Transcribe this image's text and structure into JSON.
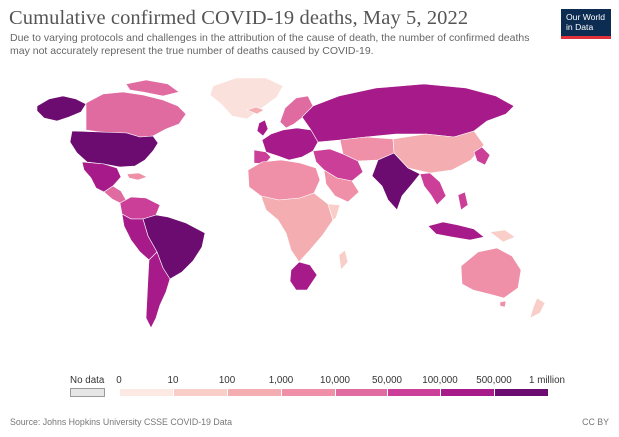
{
  "title": "Cumulative confirmed COVID-19 deaths, May 5, 2022",
  "subtitle": "Due to varying protocols and challenges in the attribution of the cause of death, the number of confirmed deaths may not accurately represent the true number of deaths caused by COVID-19.",
  "logo": {
    "line1": "Our World",
    "line2": "in Data",
    "background": "#0d2c52",
    "accent": "#e0313b"
  },
  "legend": {
    "no_data_label": "No data",
    "no_data_color": "#e6e6e6",
    "tick_labels": [
      "0",
      "10",
      "100",
      "1,000",
      "10,000",
      "50,000",
      "100,000",
      "500,000",
      "1 million"
    ],
    "bin_colors": [
      "#fde9e4",
      "#f9cdc8",
      "#f4aeb2",
      "#ef8fa8",
      "#e06ba1",
      "#cc3f98",
      "#a61a8a",
      "#6d0c70"
    ]
  },
  "source": "Source: Johns Hopkins University CSSE COVID-19 Data",
  "license": "CC BY"
}
